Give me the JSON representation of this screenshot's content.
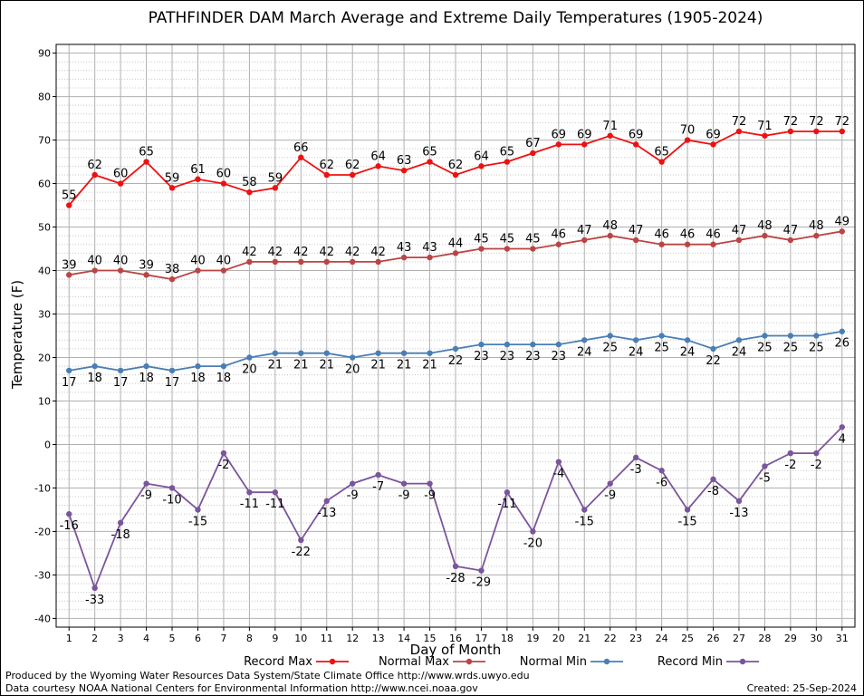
{
  "chart_data": {
    "type": "line",
    "title": "PATHFINDER DAM March Average and Extreme Daily Temperatures (1905-2024)",
    "xlabel": "Day of Month",
    "ylabel": "Temperature (F)",
    "xlim": [
      0.5,
      31.5
    ],
    "ylim": [
      -42,
      92
    ],
    "yticks": [
      -40,
      -30,
      -20,
      -10,
      0,
      10,
      20,
      30,
      40,
      50,
      60,
      70,
      80,
      90
    ],
    "x": [
      1,
      2,
      3,
      4,
      5,
      6,
      7,
      8,
      9,
      10,
      11,
      12,
      13,
      14,
      15,
      16,
      17,
      18,
      19,
      20,
      21,
      22,
      23,
      24,
      25,
      26,
      27,
      28,
      29,
      30,
      31
    ],
    "grid": true,
    "legend_position": "bottom",
    "series": [
      {
        "name": "Record Max",
        "color": "#ee1111",
        "label_side": "above",
        "values": [
          55,
          62,
          60,
          65,
          59,
          61,
          60,
          58,
          59,
          66,
          62,
          62,
          64,
          63,
          65,
          62,
          64,
          65,
          67,
          69,
          69,
          71,
          69,
          65,
          70,
          69,
          72,
          71,
          72,
          72,
          72
        ]
      },
      {
        "name": "Normal Max",
        "color": "#bb4444",
        "label_side": "above",
        "values": [
          39,
          40,
          40,
          39,
          38,
          40,
          40,
          42,
          42,
          42,
          42,
          42,
          42,
          43,
          43,
          44,
          45,
          45,
          45,
          46,
          47,
          48,
          47,
          46,
          46,
          46,
          47,
          48,
          47,
          48,
          49
        ]
      },
      {
        "name": "Normal Min",
        "color": "#4a7fb5",
        "label_side": "below",
        "values": [
          17,
          18,
          17,
          18,
          17,
          18,
          18,
          20,
          21,
          21,
          21,
          20,
          21,
          21,
          21,
          22,
          23,
          23,
          23,
          23,
          24,
          25,
          24,
          25,
          24,
          22,
          24,
          25,
          25,
          25,
          26
        ]
      },
      {
        "name": "Record Min",
        "color": "#7b559c",
        "label_side": "below",
        "values": [
          -16,
          -33,
          -18,
          -9,
          -10,
          -15,
          -2,
          -11,
          -11,
          -22,
          -13,
          -9,
          -7,
          -9,
          -9,
          -28,
          -29,
          -11,
          -20,
          -4,
          -15,
          -9,
          -3,
          -6,
          -15,
          -8,
          -13,
          -5,
          -2,
          -2,
          4
        ]
      }
    ]
  },
  "footer": {
    "produced_by": "Produced by the Wyoming Water Resources Data System/State Climate Office http://www.wrds.uwyo.edu",
    "data_courtesy": "Data courtesy NOAA National Centers for Environmental Information http://www.ncei.noaa.gov",
    "created": "Created: 25-Sep-2024"
  }
}
